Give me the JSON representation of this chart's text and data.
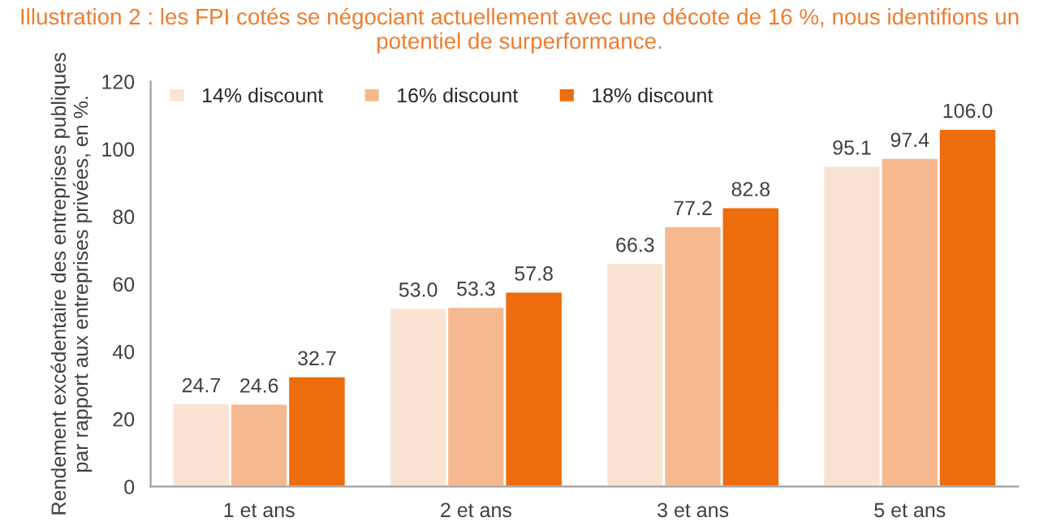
{
  "chart_data": {
    "type": "bar",
    "title": "Illustration 2 : les FPI cotés se négociant actuellement avec une décote de 16 %, nous identifions un potentiel de surperformance.",
    "ylabel": "Rendement excédentaire des entreprises publiques par rapport aux entreprises privées, en %.",
    "categories": [
      "1 et ans",
      "2 et ans",
      "3 et ans",
      "5 et ans"
    ],
    "series": [
      {
        "name": "14% discount",
        "color": "#fbe3d4",
        "values": [
          24.7,
          53.0,
          66.3,
          95.1
        ],
        "value_labels": [
          "24.7",
          "53.0",
          "66.3",
          "95.1"
        ]
      },
      {
        "name": "16% discount",
        "color": "#f6b98f",
        "values": [
          24.6,
          53.3,
          77.2,
          97.4
        ],
        "value_labels": [
          "24.6",
          "53.3",
          "77.2",
          "97.4"
        ]
      },
      {
        "name": "18% discount",
        "color": "#ed6c0c",
        "values": [
          32.7,
          57.8,
          82.8,
          106.0
        ],
        "value_labels": [
          "32.7",
          "57.8",
          "82.8",
          "106.0"
        ]
      }
    ],
    "ylim": [
      0,
      120
    ],
    "yticks": [
      0,
      20,
      40,
      60,
      80,
      100,
      120
    ],
    "legend": "top left",
    "grid": false
  }
}
